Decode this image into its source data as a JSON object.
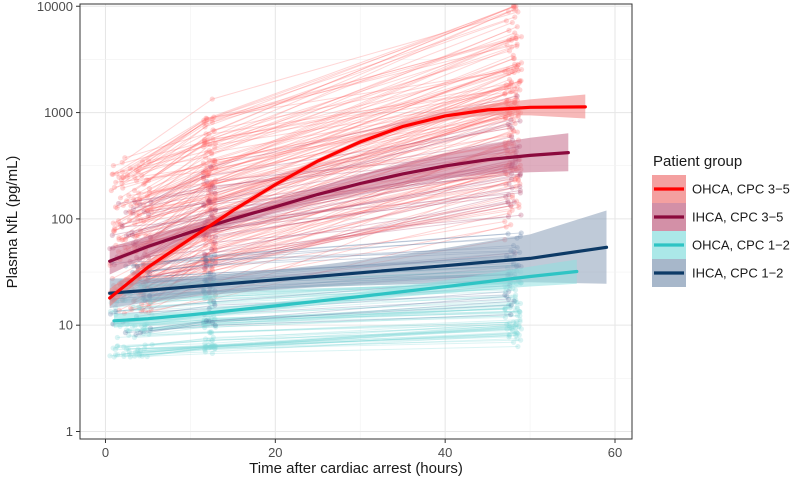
{
  "chart_data": {
    "type": "line",
    "title": "",
    "xlabel": "Time after cardiac arrest (hours)",
    "ylabel": "Plasma NfL (pg/mL)",
    "xlim": [
      -3,
      62
    ],
    "ylim": [
      0.85,
      10500
    ],
    "yscale": "log",
    "x_ticks": [
      0,
      20,
      40,
      60
    ],
    "y_ticks": [
      1,
      10,
      100,
      1000,
      10000
    ],
    "y_tick_labels": [
      "1",
      "10",
      "100",
      "1000",
      "10000"
    ],
    "grid": true,
    "legend_title": "Patient group",
    "legend_position": "right",
    "series": [
      {
        "name": "OHCA, CPC 3−5",
        "color": "#ff0000",
        "band_color": "#f08080",
        "x": [
          0.5,
          5,
          10,
          15,
          20,
          25,
          30,
          35,
          40,
          45,
          50,
          56.5
        ],
        "values": [
          18,
          35,
          65,
          120,
          210,
          350,
          530,
          740,
          930,
          1060,
          1120,
          1130
        ],
        "lower": [
          15,
          31,
          59,
          112,
          197,
          330,
          500,
          690,
          850,
          940,
          940,
          880
        ],
        "upper": [
          22,
          40,
          72,
          130,
          225,
          370,
          560,
          790,
          1010,
          1190,
          1330,
          1480
        ]
      },
      {
        "name": "IHCA, CPC 3−5",
        "color": "#8b0a3d",
        "band_color": "#c46b8a",
        "x": [
          0.5,
          5,
          10,
          15,
          20,
          25,
          30,
          35,
          40,
          45,
          50,
          54.5
        ],
        "values": [
          40,
          55,
          75,
          100,
          130,
          170,
          215,
          265,
          315,
          360,
          395,
          420
        ],
        "lower": [
          30,
          44,
          63,
          87,
          114,
          145,
          178,
          210,
          240,
          262,
          275,
          280
        ],
        "upper": [
          54,
          69,
          89,
          115,
          150,
          200,
          262,
          335,
          415,
          500,
          580,
          640
        ]
      },
      {
        "name": "OHCA, CPC 1−2",
        "color": "#2ec4c4",
        "band_color": "#8fe0e0",
        "x": [
          1,
          5,
          10,
          15,
          20,
          25,
          30,
          35,
          40,
          45,
          50,
          55.5
        ],
        "values": [
          11,
          11.5,
          12.5,
          13.8,
          15.2,
          16.8,
          18.6,
          20.7,
          23,
          25.7,
          28.7,
          32
        ],
        "lower": [
          9.5,
          10.2,
          11.4,
          12.7,
          14,
          15.4,
          16.9,
          18.5,
          20,
          21.6,
          23.1,
          24.5
        ],
        "upper": [
          12.7,
          13,
          13.7,
          15,
          16.5,
          18.3,
          20.5,
          23.2,
          26.4,
          30.5,
          35.6,
          41.5
        ]
      },
      {
        "name": "IHCA, CPC 1−2",
        "color": "#0d3a66",
        "band_color": "#8a9fb8",
        "x": [
          0.5,
          5,
          10,
          15,
          20,
          25,
          30,
          35,
          40,
          45,
          50,
          59
        ],
        "values": [
          20,
          21.3,
          23,
          24.8,
          26.7,
          28.8,
          31.1,
          33.6,
          36.3,
          39.3,
          42.5,
          54
        ],
        "lower": [
          14.5,
          16.4,
          18.4,
          20.1,
          21.5,
          22.7,
          23.6,
          24.3,
          24.8,
          25.1,
          25.3,
          24.5
        ],
        "upper": [
          27.5,
          27.6,
          28.7,
          30.6,
          33.2,
          36.5,
          41,
          46.5,
          53.2,
          61.5,
          71.5,
          120
        ]
      }
    ],
    "raw_data_points": "Hundreds of individual patient trajectories drawn as faint lines with dots, clustered at about 0-5 h, 12 h and 48 h."
  }
}
